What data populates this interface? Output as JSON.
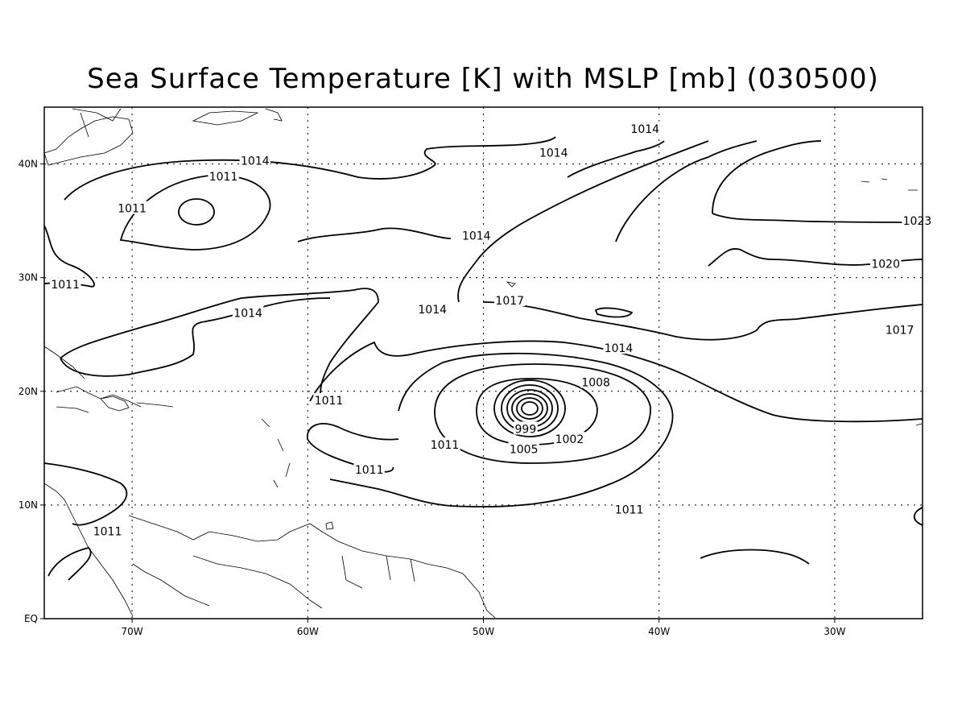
{
  "title": "Sea Surface Temperature [K] with MSLP [mb] (030500)",
  "colors": {
    "line": "#000000",
    "background": "#ffffff"
  },
  "map": {
    "lon_range": [
      -75,
      -25
    ],
    "lat_range": [
      0,
      45
    ],
    "x_ticks": [
      {
        "lon": -70,
        "label": "70W"
      },
      {
        "lon": -60,
        "label": "60W"
      },
      {
        "lon": -50,
        "label": "50W"
      },
      {
        "lon": -40,
        "label": "40W"
      },
      {
        "lon": -30,
        "label": "30W"
      }
    ],
    "y_ticks": [
      {
        "lat": 0,
        "label": "EQ"
      },
      {
        "lat": 10,
        "label": "10N"
      },
      {
        "lat": 20,
        "label": "20N"
      },
      {
        "lat": 30,
        "label": "30N"
      },
      {
        "lat": 40,
        "label": "40N"
      }
    ],
    "grid": true,
    "isobar_labels": [
      {
        "text": "1014",
        "lon": -63.0,
        "lat": 40.3
      },
      {
        "text": "1011",
        "lon": -70.0,
        "lat": 36.1
      },
      {
        "text": "1011",
        "lon": -64.8,
        "lat": 38.9
      },
      {
        "text": "1014",
        "lon": -46.0,
        "lat": 41.0
      },
      {
        "text": "1014",
        "lon": -40.8,
        "lat": 43.1
      },
      {
        "text": "1014",
        "lon": -50.4,
        "lat": 33.7
      },
      {
        "text": "1011",
        "lon": -73.8,
        "lat": 29.4
      },
      {
        "text": "1014",
        "lon": -52.9,
        "lat": 27.2
      },
      {
        "text": "1014",
        "lon": -63.4,
        "lat": 26.9
      },
      {
        "text": "1017",
        "lon": -48.5,
        "lat": 28.0
      },
      {
        "text": "1023",
        "lon": -25.3,
        "lat": 35.0
      },
      {
        "text": "1020",
        "lon": -27.1,
        "lat": 31.2
      },
      {
        "text": "1017",
        "lon": -26.3,
        "lat": 25.4
      },
      {
        "text": "1014",
        "lon": -42.3,
        "lat": 23.8
      },
      {
        "text": "1008",
        "lon": -43.6,
        "lat": 20.8
      },
      {
        "text": "1011",
        "lon": -52.2,
        "lat": 15.3
      },
      {
        "text": "1011",
        "lon": -58.8,
        "lat": 19.2
      },
      {
        "text": "1011",
        "lon": -56.5,
        "lat": 13.1
      },
      {
        "text": "1011",
        "lon": -41.7,
        "lat": 9.6
      },
      {
        "text": "1011",
        "lon": -71.4,
        "lat": 7.7
      },
      {
        "text": "999",
        "lon": -47.6,
        "lat": 16.7
      },
      {
        "text": "1002",
        "lon": -45.1,
        "lat": 15.8
      },
      {
        "text": "1005",
        "lon": -47.7,
        "lat": 14.9
      }
    ]
  }
}
